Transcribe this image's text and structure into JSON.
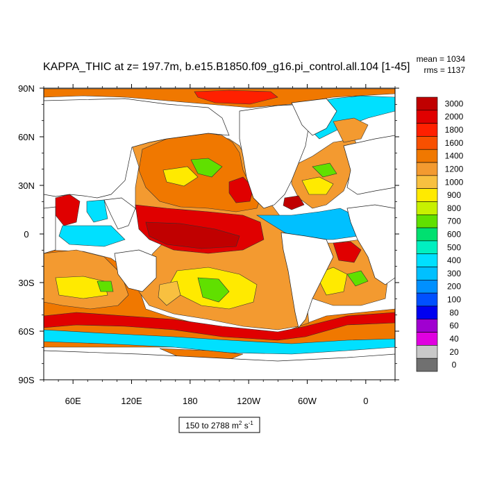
{
  "chart_data": {
    "type": "heatmap",
    "title": "KAPPA_THIC at z= 197.7m, b.e15.B1850.f09_g16.pi_control.all.104 [1-45]",
    "stats": {
      "mean": "mean = 1034",
      "rms": "rms = 1137"
    },
    "x_tick_labels": [
      "60E",
      "120E",
      "180",
      "120W",
      "60W",
      "0"
    ],
    "x_tick_lons": [
      60,
      120,
      180,
      240,
      300,
      360
    ],
    "xlim": [
      30,
      390
    ],
    "y_tick_labels": [
      "90N",
      "60N",
      "30N",
      "0",
      "30S",
      "60S",
      "90S"
    ],
    "y_tick_lats": [
      90,
      60,
      30,
      0,
      -30,
      -60,
      -90
    ],
    "ylim": [
      -90,
      90
    ],
    "range_label": {
      "prefix": "150 to 2788 m",
      "sup1": "2",
      "mid": " s",
      "sup2": "-1"
    },
    "colorbar": {
      "levels": [
        "3000",
        "2000",
        "1800",
        "1600",
        "1400",
        "1200",
        "1000",
        "900",
        "800",
        "700",
        "600",
        "500",
        "400",
        "300",
        "200",
        "100",
        "80",
        "60",
        "40",
        "20",
        "0"
      ],
      "colors": [
        "#c00000",
        "#e00000",
        "#ff2000",
        "#f85000",
        "#f07800",
        "#f39a30",
        "#f8c040",
        "#ffea00",
        "#c8f000",
        "#60e000",
        "#00e070",
        "#00f0c0",
        "#00e0ff",
        "#00c0ff",
        "#0090ff",
        "#0050ff",
        "#0000f0",
        "#a000d0",
        "#e000e0",
        "#c8c8c8",
        "#707070"
      ]
    }
  }
}
